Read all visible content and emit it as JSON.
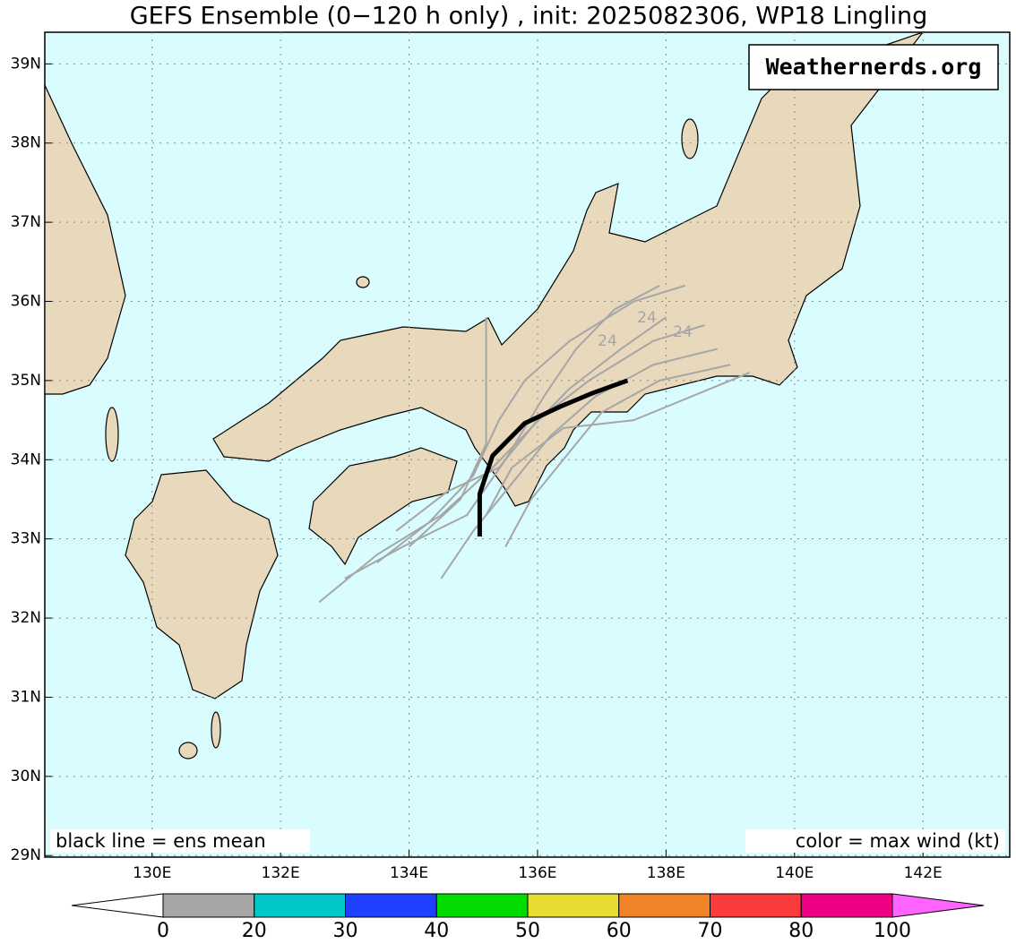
{
  "chart_data": {
    "type": "track-map",
    "title": "GEFS Ensemble (0−120 h only) , init: 2025082306, WP18 Lingling",
    "watermark": "Weathernerds.org",
    "note_left": "black line = ens mean",
    "note_right": "color = max wind (kt)",
    "xlim": [
      128.33,
      143.35
    ],
    "ylim": [
      28.98,
      39.4
    ],
    "xticks": [
      {
        "value": 130,
        "label": "130E"
      },
      {
        "value": 132,
        "label": "132E"
      },
      {
        "value": 134,
        "label": "134E"
      },
      {
        "value": 136,
        "label": "136E"
      },
      {
        "value": 138,
        "label": "138E"
      },
      {
        "value": 140,
        "label": "140E"
      },
      {
        "value": 142,
        "label": "142E"
      }
    ],
    "yticks": [
      {
        "value": 29,
        "label": "29N"
      },
      {
        "value": 30,
        "label": "30N"
      },
      {
        "value": 31,
        "label": "31N"
      },
      {
        "value": 32,
        "label": "32N"
      },
      {
        "value": 33,
        "label": "33N"
      },
      {
        "value": 34,
        "label": "34N"
      },
      {
        "value": 35,
        "label": "35N"
      },
      {
        "value": 36,
        "label": "36N"
      },
      {
        "value": 37,
        "label": "37N"
      },
      {
        "value": 38,
        "label": "38N"
      },
      {
        "value": 39,
        "label": "39N"
      }
    ],
    "grid": true,
    "hour_labels": [
      "24",
      "24",
      "24"
    ],
    "mean_track": {
      "color": "#000000",
      "lon": [
        135.1,
        135.1,
        135.3,
        135.8,
        136.35,
        136.85,
        137.4
      ],
      "lat": [
        33.03,
        33.57,
        34.05,
        34.46,
        34.67,
        34.84,
        35.0
      ]
    },
    "member_color": "#a6a6a6",
    "members": [
      {
        "lon": [
          132.6,
          133.5,
          134.5,
          135.3,
          135.9,
          136.5,
          137.3,
          138.0
        ],
        "lat": [
          32.2,
          32.8,
          33.3,
          33.9,
          34.4,
          34.9,
          35.4,
          35.8
        ]
      },
      {
        "lon": [
          133.5,
          134.3,
          135.0,
          135.4,
          135.8,
          136.5,
          137.5,
          138.3
        ],
        "lat": [
          32.7,
          33.2,
          33.8,
          34.5,
          35.0,
          35.5,
          36.0,
          36.2
        ]
      },
      {
        "lon": [
          134.5,
          135.0,
          135.6,
          136.2,
          136.9,
          137.8,
          138.8
        ],
        "lat": [
          32.5,
          33.1,
          33.7,
          34.3,
          34.8,
          35.2,
          35.4
        ]
      },
      {
        "lon": [
          135.5,
          135.9,
          136.4,
          137.0,
          137.9,
          139.0
        ],
        "lat": [
          32.9,
          33.5,
          34.0,
          34.6,
          35.0,
          35.2
        ]
      },
      {
        "lon": [
          133.0,
          133.9,
          134.9,
          135.5,
          136.1,
          136.6,
          137.2,
          137.9
        ],
        "lat": [
          32.5,
          32.9,
          33.3,
          34.0,
          34.8,
          35.4,
          35.9,
          36.2
        ]
      },
      {
        "lon": [
          134.0,
          134.8,
          135.2,
          135.2,
          135.2
        ],
        "lat": [
          32.9,
          33.5,
          34.2,
          35.0,
          35.8
        ]
      },
      {
        "lon": [
          135.2,
          135.6,
          136.4,
          137.5,
          138.4,
          139.3
        ],
        "lat": [
          33.3,
          33.9,
          34.4,
          34.5,
          34.8,
          35.1
        ]
      },
      {
        "lon": [
          133.8,
          134.6,
          135.4,
          136.0,
          136.8,
          137.8,
          138.6
        ],
        "lat": [
          33.1,
          33.6,
          33.9,
          34.5,
          35.0,
          35.5,
          35.7
        ]
      }
    ],
    "colorbar": {
      "ticks": [
        0,
        20,
        30,
        40,
        50,
        60,
        70,
        80,
        100
      ],
      "colors": [
        "#a6a6a6",
        "#00c8c8",
        "#2040ff",
        "#00dc00",
        "#e6dc32",
        "#f08228",
        "#fa3c3c",
        "#f00082"
      ],
      "under_color": "#ffffff",
      "over_color": "#ff64ff"
    }
  }
}
